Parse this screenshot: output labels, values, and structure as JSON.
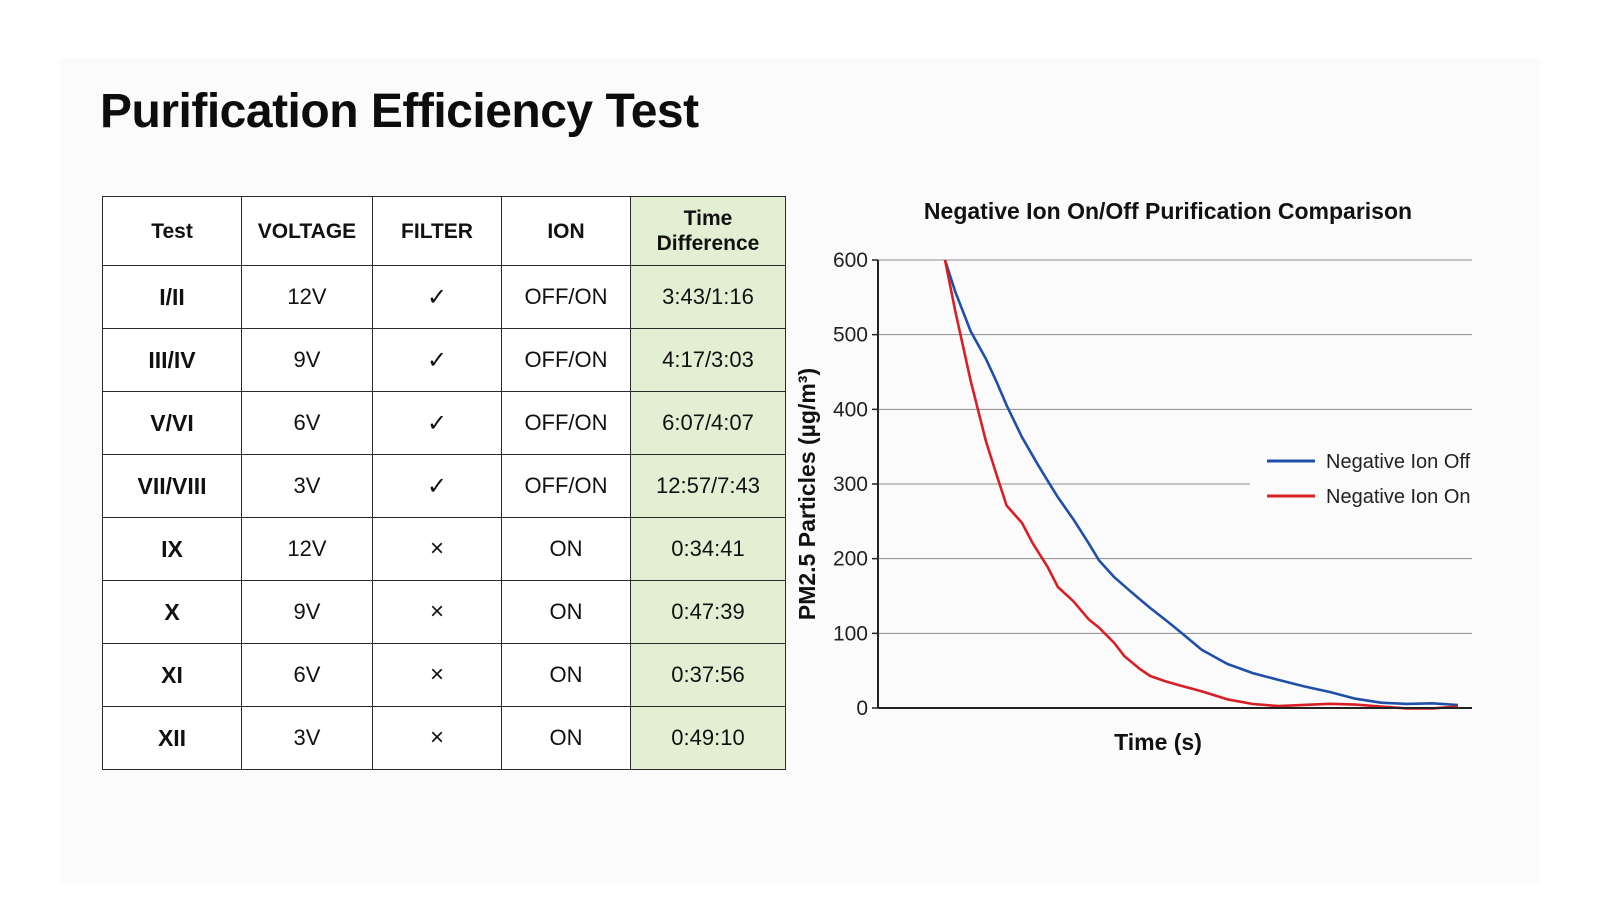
{
  "title": "Purification Efficiency Test",
  "table": {
    "headers": [
      "Test",
      "VOLTAGE",
      "FILTER",
      "ION",
      "Time\nDifference"
    ],
    "rows": [
      {
        "test": "I/II",
        "voltage": "12V",
        "filter": "✓",
        "ion": "OFF/ON",
        "time": "3:43/1:16"
      },
      {
        "test": "III/IV",
        "voltage": "9V",
        "filter": "✓",
        "ion": "OFF/ON",
        "time": "4:17/3:03"
      },
      {
        "test": "V/VI",
        "voltage": "6V",
        "filter": "✓",
        "ion": "OFF/ON",
        "time": "6:07/4:07"
      },
      {
        "test": "VII/VIII",
        "voltage": "3V",
        "filter": "✓",
        "ion": "OFF/ON",
        "time": "12:57/7:43"
      },
      {
        "test": "IX",
        "voltage": "12V",
        "filter": "×",
        "ion": "ON",
        "time": "0:34:41"
      },
      {
        "test": "X",
        "voltage": "9V",
        "filter": "×",
        "ion": "ON",
        "time": "0:47:39"
      },
      {
        "test": "XI",
        "voltage": "6V",
        "filter": "×",
        "ion": "ON",
        "time": "0:37:56"
      },
      {
        "test": "XII",
        "voltage": "3V",
        "filter": "×",
        "ion": "ON",
        "time": "0:49:10"
      }
    ],
    "highlight_color": "#e3efd3"
  },
  "chart_data": {
    "type": "line",
    "title": "Negative Ion On/Off Purification Comparison",
    "xlabel": "Time (s)",
    "ylabel": "PM2.5 Particles (µg/m³)",
    "ylim": [
      0,
      600
    ],
    "yticks": [
      0,
      100,
      200,
      300,
      400,
      500,
      600
    ],
    "xlim": [
      0,
      100
    ],
    "x_ticks_shown": false,
    "grid": "horizontal",
    "legend_position": "right",
    "series": [
      {
        "name": "Negative Ion Off",
        "color": "#1f4fa8",
        "x": [
          0,
          2,
          5,
          8,
          10,
          12,
          15,
          18,
          20,
          22,
          25,
          28,
          30,
          33,
          36,
          40,
          43,
          46,
          50,
          55,
          60,
          65,
          70,
          75,
          80,
          85,
          90,
          95,
          100
        ],
        "values": [
          600,
          560,
          505,
          465,
          435,
          405,
          365,
          330,
          305,
          280,
          250,
          220,
          200,
          178,
          158,
          132,
          115,
          100,
          80,
          62,
          48,
          36,
          26,
          20,
          14,
          10,
          7,
          5,
          4
        ]
      },
      {
        "name": "Negative Ion On",
        "color": "#d81f26",
        "x": [
          0,
          2,
          5,
          8,
          10,
          12,
          15,
          17,
          20,
          22,
          25,
          28,
          30,
          33,
          35,
          38,
          40,
          43,
          46,
          50,
          55,
          60,
          65,
          70,
          75,
          80,
          85,
          90,
          95,
          100
        ],
        "values": [
          600,
          530,
          440,
          360,
          315,
          270,
          245,
          220,
          190,
          165,
          145,
          118,
          105,
          85,
          70,
          55,
          45,
          35,
          27,
          20,
          12,
          8,
          5,
          4,
          3,
          2,
          2,
          2,
          2,
          2
        ]
      }
    ]
  }
}
